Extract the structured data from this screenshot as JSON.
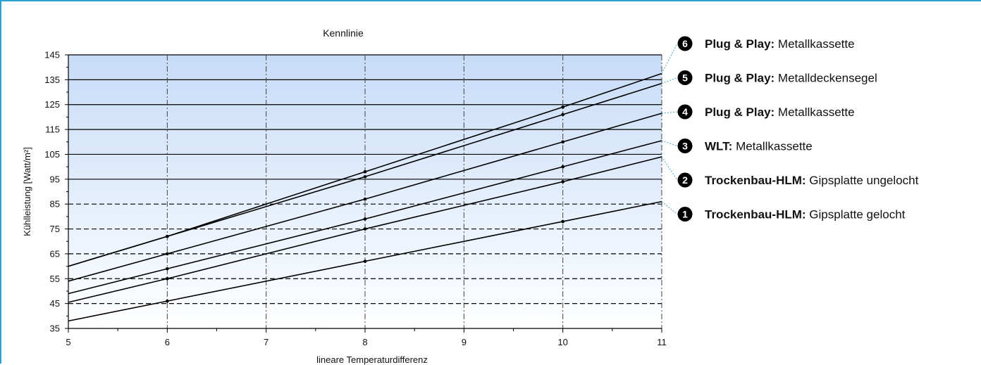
{
  "colors": {
    "frame": "#29a3d6",
    "plot_top": "#c7dcf8",
    "plot_bottom": "#ffffff",
    "series_line": "#000000",
    "connector": "#4aa3cf",
    "badge": "#000000"
  },
  "chart_data": {
    "type": "line",
    "title": "Kennlinie",
    "xlabel": "lineare Temperaturdifferenz",
    "ylabel": "Kühlleistung [Watt/m²]",
    "xlim": [
      5,
      11
    ],
    "ylim": [
      35,
      145
    ],
    "x_ticks": [
      5,
      6,
      7,
      8,
      9,
      10,
      11
    ],
    "y_ticks": [
      35,
      45,
      55,
      65,
      75,
      85,
      95,
      105,
      115,
      125,
      135,
      145
    ],
    "grid": true,
    "series": [
      {
        "id": "1",
        "bold": "Trockenbau-HLM:",
        "name": "Gipsplatte gelocht",
        "x": [
          5,
          6,
          8,
          10,
          11
        ],
        "y": [
          38,
          46,
          62,
          78,
          86
        ],
        "markers_x": [
          6,
          8,
          10
        ]
      },
      {
        "id": "2",
        "bold": "Trockenbau-HLM:",
        "name": "Gipsplatte ungelocht",
        "x": [
          5,
          6,
          8,
          10,
          11
        ],
        "y": [
          45.5,
          55,
          75,
          94,
          104
        ],
        "markers_x": [
          6,
          8,
          10
        ]
      },
      {
        "id": "3",
        "bold": "WLT:",
        "name": "Metallkassette",
        "x": [
          5,
          6,
          8,
          10,
          11
        ],
        "y": [
          49,
          59,
          79,
          100,
          110.5
        ],
        "markers_x": [
          6,
          8,
          10
        ]
      },
      {
        "id": "4",
        "bold": "Plug & Play:",
        "name": "Metallkassette",
        "x": [
          5,
          6,
          8,
          10,
          11
        ],
        "y": [
          54,
          65,
          87,
          110,
          121.5
        ],
        "markers_x": [
          6,
          8,
          10
        ]
      },
      {
        "id": "5",
        "bold": "Plug & Play:",
        "name": "Metalldeckensegel",
        "x": [
          5,
          6,
          8,
          10,
          11
        ],
        "y": [
          60,
          72,
          96,
          121,
          133.5
        ],
        "markers_x": [
          6,
          8,
          10
        ]
      },
      {
        "id": "6",
        "bold": "Plug & Play:",
        "name": "Metallkassette",
        "x": [
          5,
          6,
          8,
          10,
          11
        ],
        "y": [
          60,
          72,
          98,
          124,
          137.5
        ],
        "markers_x": [
          6,
          8,
          10
        ]
      }
    ],
    "legend": {
      "placement": "right",
      "order": [
        "6",
        "5",
        "4",
        "3",
        "2",
        "1"
      ]
    }
  }
}
